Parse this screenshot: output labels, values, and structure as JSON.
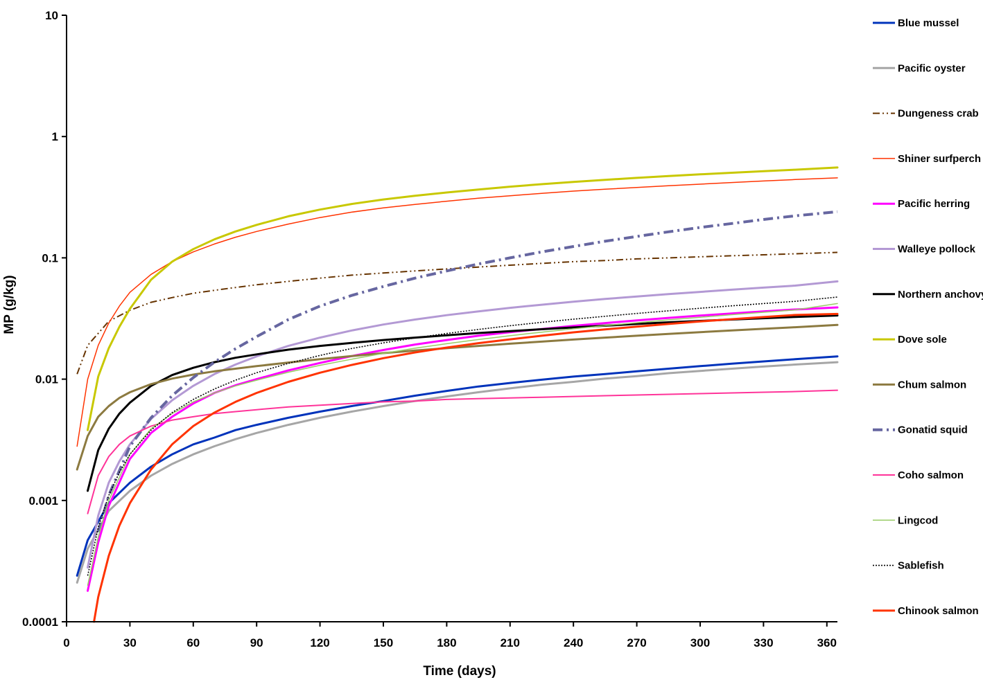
{
  "chart_data": {
    "type": "line",
    "title": "",
    "xlabel": "Time (days)",
    "ylabel": "MP (g/kg)",
    "xlim": [
      0,
      365
    ],
    "ylim": [
      0.0001,
      10
    ],
    "yscale": "log",
    "grid": false,
    "legend": "right",
    "xticks": [
      "0",
      "30",
      "60",
      "90",
      "120",
      "150",
      "180",
      "210",
      "240",
      "270",
      "300",
      "330",
      "360"
    ],
    "yticks": [
      "10",
      "1",
      "0.1",
      "0.01",
      "0.001",
      "0.0001"
    ],
    "series": [
      {
        "name": "Blue mussel",
        "color": "#0033bb",
        "style": "solid-thick",
        "x": [
          5,
          10,
          20,
          30,
          40,
          50,
          60,
          70,
          80,
          90,
          105,
          120,
          135,
          150,
          165,
          180,
          195,
          210,
          225,
          240,
          255,
          270,
          285,
          300,
          315,
          330,
          345,
          365
        ],
        "y": [
          0.00024,
          0.00047,
          0.00095,
          0.0014,
          0.0019,
          0.0024,
          0.0029,
          0.0033,
          0.0038,
          0.0042,
          0.0048,
          0.0054,
          0.006,
          0.0066,
          0.0073,
          0.008,
          0.0087,
          0.0093,
          0.0099,
          0.0105,
          0.011,
          0.0116,
          0.0122,
          0.0128,
          0.0134,
          0.014,
          0.0146,
          0.0154
        ]
      },
      {
        "name": "Pacific oyster",
        "color": "#a6a6a6",
        "style": "solid-thick",
        "x": [
          5,
          10,
          20,
          30,
          40,
          50,
          60,
          70,
          80,
          90,
          105,
          120,
          135,
          150,
          165,
          180,
          195,
          210,
          225,
          240,
          255,
          270,
          285,
          300,
          315,
          330,
          345,
          365
        ],
        "y": [
          0.00021,
          0.0004,
          0.00082,
          0.0012,
          0.0016,
          0.002,
          0.0024,
          0.0028,
          0.0032,
          0.0036,
          0.0042,
          0.0048,
          0.0054,
          0.006,
          0.0066,
          0.0072,
          0.0078,
          0.0084,
          0.009,
          0.0095,
          0.0101,
          0.0106,
          0.0112,
          0.0117,
          0.0122,
          0.0127,
          0.0132,
          0.0138
        ]
      },
      {
        "name": "Dungeness crab",
        "color": "#663300",
        "style": "dashdotdot",
        "x": [
          5,
          10,
          20,
          30,
          40,
          50,
          60,
          70,
          80,
          90,
          105,
          120,
          135,
          150,
          165,
          180,
          195,
          210,
          225,
          240,
          255,
          270,
          285,
          300,
          315,
          330,
          345,
          365
        ],
        "y": [
          0.011,
          0.019,
          0.03,
          0.037,
          0.043,
          0.047,
          0.051,
          0.054,
          0.057,
          0.06,
          0.064,
          0.068,
          0.072,
          0.075,
          0.078,
          0.081,
          0.084,
          0.087,
          0.09,
          0.093,
          0.095,
          0.098,
          0.1,
          0.102,
          0.104,
          0.106,
          0.108,
          0.111
        ]
      },
      {
        "name": "Shiner surfperch",
        "color": "#ff3300",
        "style": "solid-thin",
        "x": [
          5,
          10,
          15,
          20,
          25,
          30,
          40,
          50,
          60,
          70,
          80,
          90,
          105,
          120,
          135,
          150,
          165,
          180,
          195,
          210,
          225,
          240,
          255,
          270,
          285,
          300,
          315,
          330,
          345,
          365
        ],
        "y": [
          0.0028,
          0.01,
          0.019,
          0.029,
          0.04,
          0.052,
          0.073,
          0.093,
          0.112,
          0.13,
          0.148,
          0.165,
          0.19,
          0.215,
          0.238,
          0.258,
          0.276,
          0.293,
          0.31,
          0.325,
          0.34,
          0.355,
          0.368,
          0.38,
          0.393,
          0.405,
          0.418,
          0.43,
          0.442,
          0.456
        ]
      },
      {
        "name": "Pacific herring",
        "color": "#ff00ff",
        "style": "solid-thick",
        "x": [
          10,
          15,
          20,
          30,
          40,
          50,
          60,
          70,
          80,
          90,
          105,
          120,
          135,
          150,
          165,
          180,
          195,
          210,
          225,
          240,
          255,
          270,
          285,
          300,
          315,
          330,
          345,
          365
        ],
        "y": [
          0.00018,
          0.00045,
          0.0009,
          0.0022,
          0.0036,
          0.0049,
          0.0063,
          0.0077,
          0.0089,
          0.01,
          0.0118,
          0.0136,
          0.0155,
          0.0174,
          0.0193,
          0.021,
          0.0228,
          0.0244,
          0.0259,
          0.0275,
          0.029,
          0.0305,
          0.032,
          0.0334,
          0.0348,
          0.0362,
          0.0375,
          0.039
        ]
      },
      {
        "name": "Walleye pollock",
        "color": "#b399d4",
        "style": "solid-thick",
        "x": [
          10,
          15,
          20,
          25,
          30,
          40,
          50,
          60,
          70,
          80,
          90,
          105,
          120,
          135,
          150,
          165,
          180,
          195,
          210,
          225,
          240,
          255,
          270,
          285,
          300,
          315,
          330,
          345,
          365
        ],
        "y": [
          0.00028,
          0.00075,
          0.0014,
          0.0021,
          0.0029,
          0.0047,
          0.0067,
          0.0088,
          0.011,
          0.0132,
          0.0154,
          0.0188,
          0.022,
          0.0252,
          0.0282,
          0.031,
          0.0337,
          0.0362,
          0.0387,
          0.0411,
          0.0435,
          0.0458,
          0.048,
          0.0502,
          0.0524,
          0.0546,
          0.0568,
          0.059,
          0.064
        ]
      },
      {
        "name": "Northern anchovy",
        "color": "#000000",
        "style": "solid-thick",
        "x": [
          10,
          15,
          20,
          25,
          30,
          40,
          50,
          60,
          70,
          80,
          90,
          105,
          120,
          135,
          150,
          165,
          180,
          195,
          210,
          225,
          240,
          255,
          270,
          285,
          300,
          315,
          330,
          345,
          365
        ],
        "y": [
          0.0012,
          0.0026,
          0.0039,
          0.0052,
          0.0064,
          0.0088,
          0.0108,
          0.0124,
          0.0138,
          0.015,
          0.016,
          0.0175,
          0.0188,
          0.0199,
          0.021,
          0.022,
          0.023,
          0.024,
          0.0249,
          0.0258,
          0.0267,
          0.0276,
          0.0285,
          0.0294,
          0.0302,
          0.031,
          0.0318,
          0.0326,
          0.0335
        ]
      },
      {
        "name": "Dove sole",
        "color": "#c8c800",
        "style": "solid-thick",
        "x": [
          10,
          15,
          20,
          25,
          30,
          40,
          50,
          60,
          70,
          80,
          90,
          105,
          120,
          135,
          150,
          165,
          180,
          195,
          210,
          225,
          240,
          255,
          270,
          285,
          300,
          315,
          330,
          345,
          365
        ],
        "y": [
          0.0038,
          0.0105,
          0.018,
          0.027,
          0.038,
          0.066,
          0.093,
          0.118,
          0.142,
          0.165,
          0.187,
          0.22,
          0.25,
          0.278,
          0.303,
          0.325,
          0.346,
          0.366,
          0.386,
          0.405,
          0.423,
          0.44,
          0.456,
          0.472,
          0.488,
          0.503,
          0.518,
          0.533,
          0.556
        ]
      },
      {
        "name": "Chum salmon",
        "color": "#8c7a40",
        "style": "solid-thick",
        "x": [
          5,
          10,
          15,
          20,
          25,
          30,
          40,
          50,
          60,
          70,
          80,
          90,
          105,
          120,
          135,
          150,
          165,
          180,
          195,
          210,
          225,
          240,
          255,
          270,
          285,
          300,
          315,
          330,
          345,
          365
        ],
        "y": [
          0.0018,
          0.0034,
          0.0049,
          0.006,
          0.007,
          0.0078,
          0.0091,
          0.0101,
          0.0109,
          0.0116,
          0.0122,
          0.0128,
          0.0137,
          0.0146,
          0.0155,
          0.0164,
          0.0172,
          0.018,
          0.0188,
          0.0196,
          0.0204,
          0.0212,
          0.022,
          0.0228,
          0.0236,
          0.0244,
          0.0252,
          0.026,
          0.0268,
          0.028
        ]
      },
      {
        "name": "Gonatid squid",
        "color": "#6666a0",
        "style": "dashdot-thick",
        "x": [
          15,
          20,
          30,
          40,
          50,
          60,
          70,
          80,
          90,
          105,
          120,
          135,
          150,
          165,
          180,
          195,
          210,
          225,
          240,
          255,
          270,
          285,
          300,
          315,
          330,
          345,
          365
        ],
        "y": [
          0.00055,
          0.0011,
          0.0028,
          0.0048,
          0.0073,
          0.0103,
          0.0138,
          0.0178,
          0.0224,
          0.031,
          0.04,
          0.049,
          0.058,
          0.068,
          0.078,
          0.089,
          0.1,
          0.112,
          0.124,
          0.137,
          0.15,
          0.164,
          0.178,
          0.192,
          0.207,
          0.222,
          0.24
        ]
      },
      {
        "name": "Coho salmon",
        "color": "#ff3399",
        "style": "solid",
        "x": [
          10,
          15,
          20,
          25,
          30,
          40,
          50,
          60,
          70,
          80,
          90,
          105,
          120,
          135,
          150,
          165,
          180,
          195,
          210,
          225,
          240,
          255,
          270,
          285,
          300,
          315,
          330,
          345,
          365
        ],
        "y": [
          0.00078,
          0.0016,
          0.0023,
          0.0029,
          0.0034,
          0.0041,
          0.0046,
          0.0049,
          0.0052,
          0.0054,
          0.0056,
          0.0059,
          0.0061,
          0.0063,
          0.0065,
          0.0066,
          0.0068,
          0.0069,
          0.007,
          0.0071,
          0.0072,
          0.0073,
          0.0074,
          0.0075,
          0.0076,
          0.0077,
          0.0078,
          0.0079,
          0.0081
        ]
      },
      {
        "name": "Lingcod",
        "color": "#99cc66",
        "style": "solid-thin",
        "x": [
          10,
          15,
          20,
          30,
          40,
          50,
          60,
          70,
          80,
          90,
          105,
          120,
          135,
          150,
          165,
          180,
          195,
          210,
          225,
          240,
          255,
          270,
          285,
          300,
          315,
          330,
          345,
          365
        ],
        "y": [
          0.0002,
          0.0005,
          0.001,
          0.0024,
          0.0039,
          0.0052,
          0.0065,
          0.0077,
          0.0088,
          0.0098,
          0.0114,
          0.013,
          0.0146,
          0.0163,
          0.018,
          0.0196,
          0.0212,
          0.0228,
          0.0244,
          0.026,
          0.0276,
          0.0292,
          0.0308,
          0.0324,
          0.034,
          0.0356,
          0.0372,
          0.042
        ]
      },
      {
        "name": "Sablefish",
        "color": "#000000",
        "style": "dotted",
        "x": [
          10,
          15,
          20,
          25,
          30,
          40,
          50,
          60,
          70,
          80,
          90,
          105,
          120,
          135,
          150,
          165,
          180,
          195,
          210,
          225,
          240,
          255,
          270,
          285,
          300,
          315,
          330,
          345,
          365
        ],
        "y": [
          0.00024,
          0.0006,
          0.0011,
          0.0017,
          0.0024,
          0.0038,
          0.0053,
          0.0068,
          0.0083,
          0.0098,
          0.0113,
          0.0135,
          0.0157,
          0.0179,
          0.0199,
          0.0219,
          0.0238,
          0.0257,
          0.0276,
          0.0294,
          0.0312,
          0.033,
          0.0348,
          0.0366,
          0.0384,
          0.0402,
          0.042,
          0.0438,
          0.0475
        ]
      },
      {
        "name": "Chinook salmon",
        "color": "#ff3300",
        "style": "solid-thick",
        "x": [
          13,
          15,
          20,
          25,
          30,
          40,
          50,
          60,
          70,
          80,
          90,
          105,
          120,
          135,
          150,
          165,
          180,
          195,
          210,
          225,
          240,
          255,
          270,
          285,
          300,
          315,
          330,
          345,
          365
        ],
        "y": [
          0.0001,
          0.00016,
          0.00035,
          0.00062,
          0.00095,
          0.0018,
          0.0029,
          0.0041,
          0.0053,
          0.0065,
          0.0077,
          0.0095,
          0.0113,
          0.0131,
          0.0149,
          0.0166,
          0.0182,
          0.0198,
          0.0213,
          0.0228,
          0.0243,
          0.0257,
          0.0271,
          0.0285,
          0.0299,
          0.0312,
          0.0325,
          0.0338,
          0.0345
        ]
      }
    ]
  }
}
